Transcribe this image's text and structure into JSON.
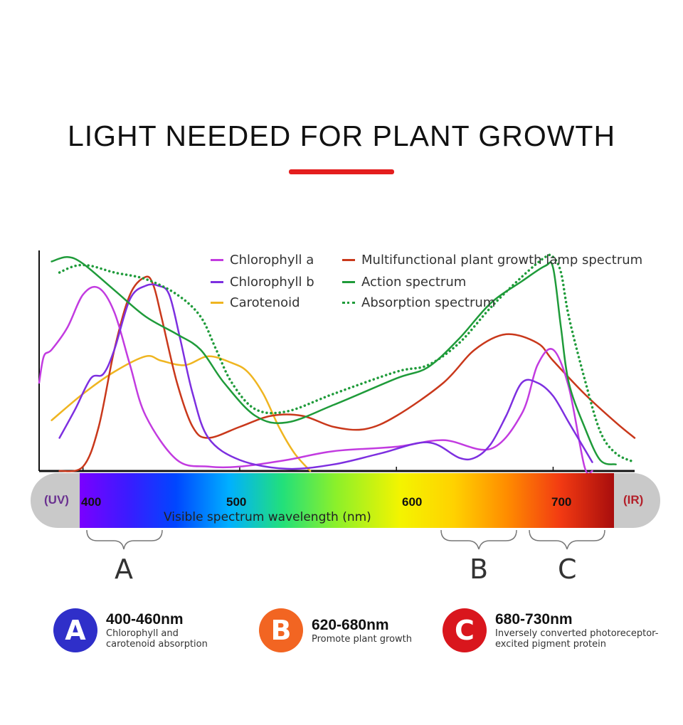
{
  "header": {
    "title": "LIGHT NEEDED FOR PLANT GROWTH",
    "rule_color": "#e41e1e"
  },
  "legend": [
    {
      "label": "Chlorophyll a",
      "color": "#c23be0",
      "style": "solid"
    },
    {
      "label": "Chlorophyll b",
      "color": "#7d2fe0",
      "style": "solid"
    },
    {
      "label": "Carotenoid",
      "color": "#efb521",
      "style": "solid"
    },
    {
      "label": "Multifunctional plant growth lamp spectrum",
      "color": "#c9381b",
      "style": "solid"
    },
    {
      "label": "Action spectrum",
      "color": "#1f9b3a",
      "style": "solid"
    },
    {
      "label": "Absorption spectrum",
      "color": "#1f9b3a",
      "style": "dotted"
    }
  ],
  "spectrum_bar": {
    "left_label": "(UV)",
    "left_color": "#6a3190",
    "right_label": "(IR)",
    "right_color": "#b3202a",
    "ticks": [
      "400",
      "500",
      "600",
      "700"
    ],
    "caption": "Visible spectrum wavelength (nm)"
  },
  "bands": [
    {
      "letter": "A",
      "range": "400-460nm",
      "desc": [
        "Chlorophyll and",
        "carotenoid absorption"
      ],
      "color": "#2f2fc9"
    },
    {
      "letter": "B",
      "range": "620-680nm",
      "desc": [
        "Promote plant growth"
      ],
      "color": "#f26522"
    },
    {
      "letter": "C",
      "range": "680-730nm",
      "desc": [
        "Inversely converted photoreceptor-",
        "excited pigment protein"
      ],
      "color": "#d9161d"
    }
  ],
  "chart_data": {
    "type": "line",
    "title": "LIGHT NEEDED FOR PLANT GROWTH",
    "xlabel": "Visible spectrum wavelength (nm)",
    "ylabel": "",
    "xlim": [
      372,
      752
    ],
    "ylim": [
      0,
      100
    ],
    "x_ticks": [
      400,
      500,
      600,
      700
    ],
    "grid": false,
    "legend_position": "top-right",
    "series": [
      {
        "name": "Chlorophyll a",
        "x": [
          372,
          375,
          380,
          390,
          400,
          410,
          420,
          430,
          440,
          460,
          480,
          500,
          530,
          560,
          600,
          630,
          660,
          680,
          690,
          700,
          710,
          720,
          725
        ],
        "y": [
          40,
          52,
          55,
          65,
          80,
          83,
          72,
          48,
          25,
          5,
          2,
          2,
          5,
          9,
          11,
          14,
          10,
          26,
          48,
          55,
          38,
          2,
          0
        ]
      },
      {
        "name": "Chlorophyll b",
        "x": [
          385,
          395,
          405,
          413,
          420,
          430,
          440,
          448,
          455,
          462,
          470,
          480,
          500,
          530,
          560,
          590,
          620,
          640,
          650,
          660,
          670,
          680,
          690,
          700,
          710,
          720,
          725
        ],
        "y": [
          15,
          28,
          42,
          44,
          55,
          78,
          84,
          84,
          80,
          60,
          35,
          15,
          5,
          1,
          3,
          8,
          13,
          6,
          6,
          12,
          25,
          40,
          40,
          34,
          22,
          10,
          4
        ]
      },
      {
        "name": "Carotenoid",
        "x": [
          380,
          400,
          420,
          440,
          450,
          465,
          480,
          495,
          505,
          515,
          525,
          535,
          545
        ],
        "y": [
          23,
          35,
          45,
          52,
          50,
          48,
          52,
          49,
          45,
          35,
          20,
          8,
          0
        ]
      },
      {
        "name": "Multifunctional plant growth lamp spectrum",
        "x": [
          385,
          400,
          410,
          420,
          430,
          440,
          445,
          450,
          460,
          470,
          480,
          500,
          520,
          540,
          560,
          580,
          600,
          630,
          650,
          670,
          690,
          700,
          720,
          740,
          752
        ],
        "y": [
          0,
          2,
          20,
          55,
          80,
          88,
          84,
          70,
          40,
          20,
          15,
          20,
          25,
          25,
          20,
          19,
          25,
          40,
          55,
          62,
          58,
          50,
          35,
          22,
          15
        ]
      },
      {
        "name": "Action spectrum",
        "x": [
          380,
          390,
          400,
          420,
          440,
          460,
          475,
          490,
          510,
          530,
          560,
          600,
          620,
          640,
          660,
          680,
          695,
          700,
          705,
          710,
          720,
          730,
          740
        ],
        "y": [
          95,
          97,
          94,
          82,
          70,
          62,
          55,
          40,
          25,
          22,
          30,
          42,
          47,
          60,
          76,
          86,
          93,
          92,
          65,
          40,
          20,
          5,
          3
        ]
      },
      {
        "name": "Absorption spectrum",
        "x": [
          385,
          395,
          405,
          420,
          440,
          460,
          475,
          485,
          495,
          510,
          530,
          560,
          600,
          620,
          640,
          660,
          680,
          695,
          700,
          705,
          710,
          720,
          730,
          740,
          752
        ],
        "y": [
          90,
          93,
          93,
          90,
          87,
          80,
          70,
          55,
          40,
          28,
          27,
          35,
          45,
          48,
          58,
          74,
          88,
          97,
          97,
          90,
          70,
          42,
          18,
          8,
          4
        ]
      }
    ]
  }
}
